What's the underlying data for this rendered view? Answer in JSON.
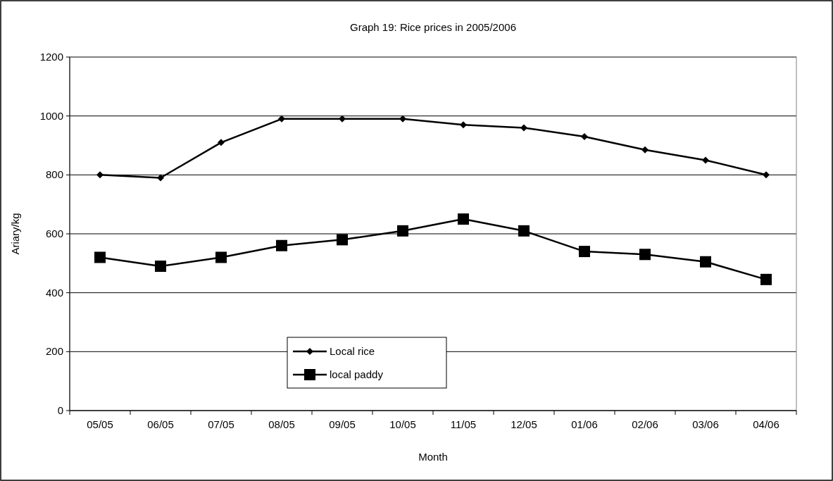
{
  "chart_data": {
    "type": "line",
    "title": "Graph 19: Rice prices in 2005/2006",
    "xlabel": "Month",
    "ylabel": "Ariary/kg",
    "categories": [
      "05/05",
      "06/05",
      "07/05",
      "08/05",
      "09/05",
      "10/05",
      "11/05",
      "12/05",
      "01/06",
      "02/06",
      "03/06",
      "04/06"
    ],
    "series": [
      {
        "name": "Local rice",
        "color": "#000000",
        "marker": "diamond",
        "values": [
          800,
          790,
          910,
          990,
          990,
          990,
          970,
          960,
          930,
          885,
          850,
          800
        ]
      },
      {
        "name": "local paddy",
        "color": "#000000",
        "marker": "square",
        "values": [
          520,
          490,
          520,
          560,
          580,
          610,
          650,
          610,
          540,
          530,
          505,
          445
        ]
      }
    ],
    "ylim": [
      0,
      1200
    ],
    "yticks": [
      0,
      200,
      400,
      600,
      800,
      1000,
      1200
    ],
    "grid": "y",
    "legend": "bottom",
    "line_style": "solid"
  }
}
